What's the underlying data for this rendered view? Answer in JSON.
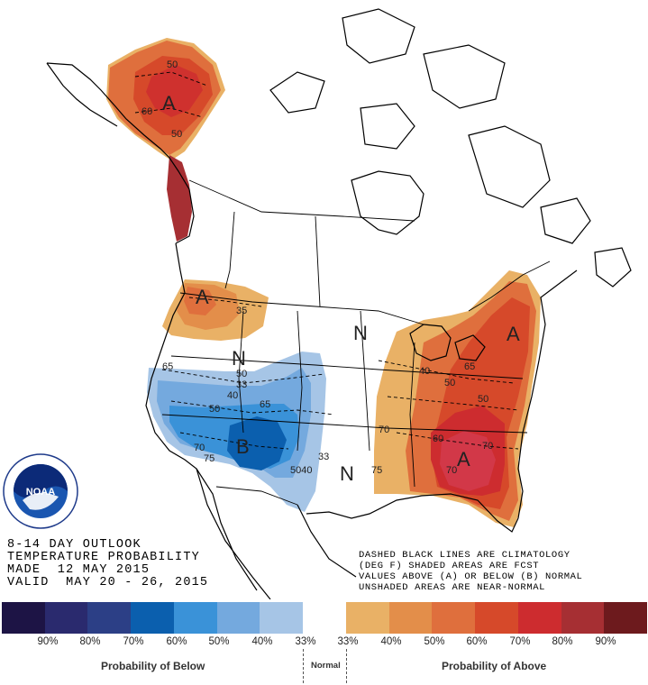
{
  "outlook": {
    "line1": "8-14 DAY OUTLOOK",
    "line2": "TEMPERATURE PROBABILITY",
    "line3": "MADE  12 MAY 2015",
    "line4": "VALID  MAY 20 - 26, 2015"
  },
  "legend_text": {
    "line1": "DASHED BLACK LINES ARE CLIMATOLOGY",
    "line2": "(DEG F) SHADED AREAS ARE FCST",
    "line3": "VALUES ABOVE (A) OR BELOW (B) NORMAL",
    "line4": "UNSHADED AREAS ARE NEAR-NORMAL"
  },
  "logo": {
    "text": "NOAA",
    "ring_text": "NATIONAL OCEANIC AND ATMOSPHERIC ADMINISTRATION · U.S. DEPARTMENT OF COMMERCE"
  },
  "map_labels": {
    "alaska_above": "A",
    "northwest_above": "A",
    "east_above": "A",
    "southeast_above": "A",
    "southwest_below": "B",
    "normal_1": "N",
    "normal_2": "N",
    "normal_3": "N",
    "ak_50a": "50",
    "ak_60": "60",
    "ak_50b": "50",
    "nw_35": "35",
    "sw_65a": "65",
    "sw_50a": "50",
    "sw_33": "33",
    "sw_40": "40",
    "sw_65b": "65",
    "sw_50b": "50",
    "sw_70": "70",
    "sw_75": "75",
    "sw_33b": "33",
    "sw_5040": "5040",
    "e_40": "40",
    "e_50": "50",
    "e_65": "65",
    "e_50b": "50",
    "e_60": "60",
    "e_70": "70",
    "e_70b": "70",
    "e_75": "75",
    "e_70c": "70"
  },
  "colors": {
    "below_90": "#1d1445",
    "below_80": "#2a2a6e",
    "below_70": "#2c3f86",
    "below_60": "#0b5fae",
    "below_50": "#3a92d8",
    "below_40": "#74a9de",
    "below_33": "#a6c5e6",
    "normal": "#ffffff",
    "above_33": "#e9b166",
    "above_40": "#e38e4a",
    "above_50": "#df6f3d",
    "above_60": "#d6492a",
    "above_70": "#cd2c2f",
    "above_80": "#a62f33",
    "above_90": "#6d1a1d"
  },
  "colorbar": {
    "labels": [
      "90%",
      "80%",
      "70%",
      "60%",
      "50%",
      "40%",
      "33%",
      "33%",
      "40%",
      "50%",
      "60%",
      "70%",
      "80%",
      "90%"
    ],
    "caption_below": "Probability of Below",
    "caption_normal": "Normal",
    "caption_above": "Probability of Above"
  }
}
